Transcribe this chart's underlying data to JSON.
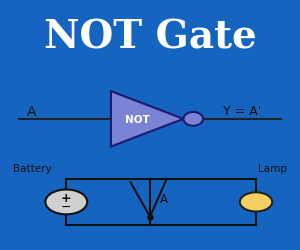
{
  "title": "NOT Gate",
  "title_color": "#FFFFFF",
  "bg_color": "#1565c0",
  "panel_bg": "#FFFFFF",
  "panel_border": "#000000",
  "triangle_fill": "#7b84d4",
  "triangle_edge": "#1a1a6e",
  "bubble_fill": "#7b84d4",
  "bubble_edge": "#1a1a6e",
  "wire_color": "#222222",
  "label_A": "A",
  "label_Y": "Y = A'",
  "label_NOT": "NOT",
  "battery_label": "Battery",
  "lamp_label": "Lamp",
  "battery_fill": "#d0d0d0",
  "battery_edge": "#111111",
  "lamp_fill": "#f5d060",
  "lamp_edge": "#222222",
  "switch_label": "A",
  "circuit_line_color": "#111111"
}
